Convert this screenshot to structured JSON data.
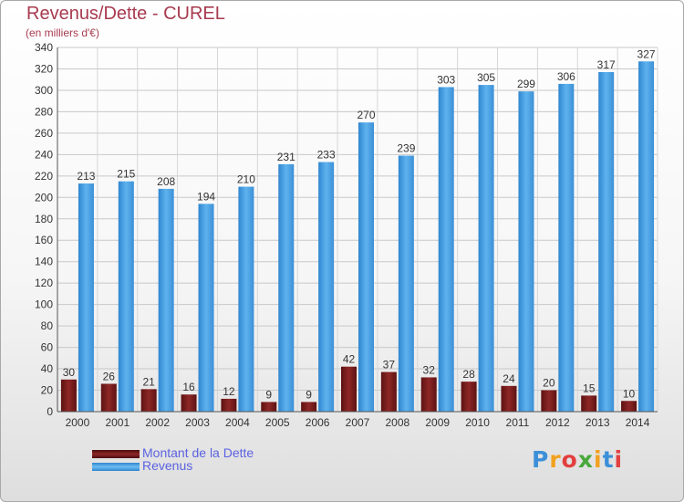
{
  "header": {
    "title": "Revenus/Dette - CUREL",
    "subtitle": "(en milliers d'€)"
  },
  "legend": [
    {
      "label": "Montant de la Dette",
      "color": "#7d1d1d"
    },
    {
      "label": "Revenus",
      "color": "#4da3e6"
    }
  ],
  "logo": {
    "text": "Proxiti"
  },
  "chart_data": {
    "type": "bar",
    "title": "Revenus/Dette - CUREL",
    "subtitle": "(en milliers d'€)",
    "xlabel": "",
    "ylabel": "",
    "categories": [
      "2000",
      "2001",
      "2002",
      "2003",
      "2004",
      "2005",
      "2006",
      "2007",
      "2008",
      "2009",
      "2010",
      "2011",
      "2012",
      "2013",
      "2014"
    ],
    "series": [
      {
        "name": "Montant de la Dette",
        "color": "#7d1d1d",
        "values": [
          30,
          26,
          21,
          16,
          12,
          9,
          9,
          42,
          37,
          32,
          28,
          24,
          20,
          15,
          10
        ]
      },
      {
        "name": "Revenus",
        "color": "#4da3e6",
        "values": [
          213,
          215,
          208,
          194,
          210,
          231,
          233,
          270,
          239,
          303,
          305,
          299,
          306,
          317,
          327
        ]
      }
    ],
    "ylim": [
      0,
      340
    ],
    "yticks": [
      0,
      20,
      40,
      60,
      80,
      100,
      120,
      140,
      160,
      180,
      200,
      220,
      240,
      260,
      280,
      300,
      320,
      340
    ],
    "grid": true,
    "legend_position": "bottom-left"
  }
}
